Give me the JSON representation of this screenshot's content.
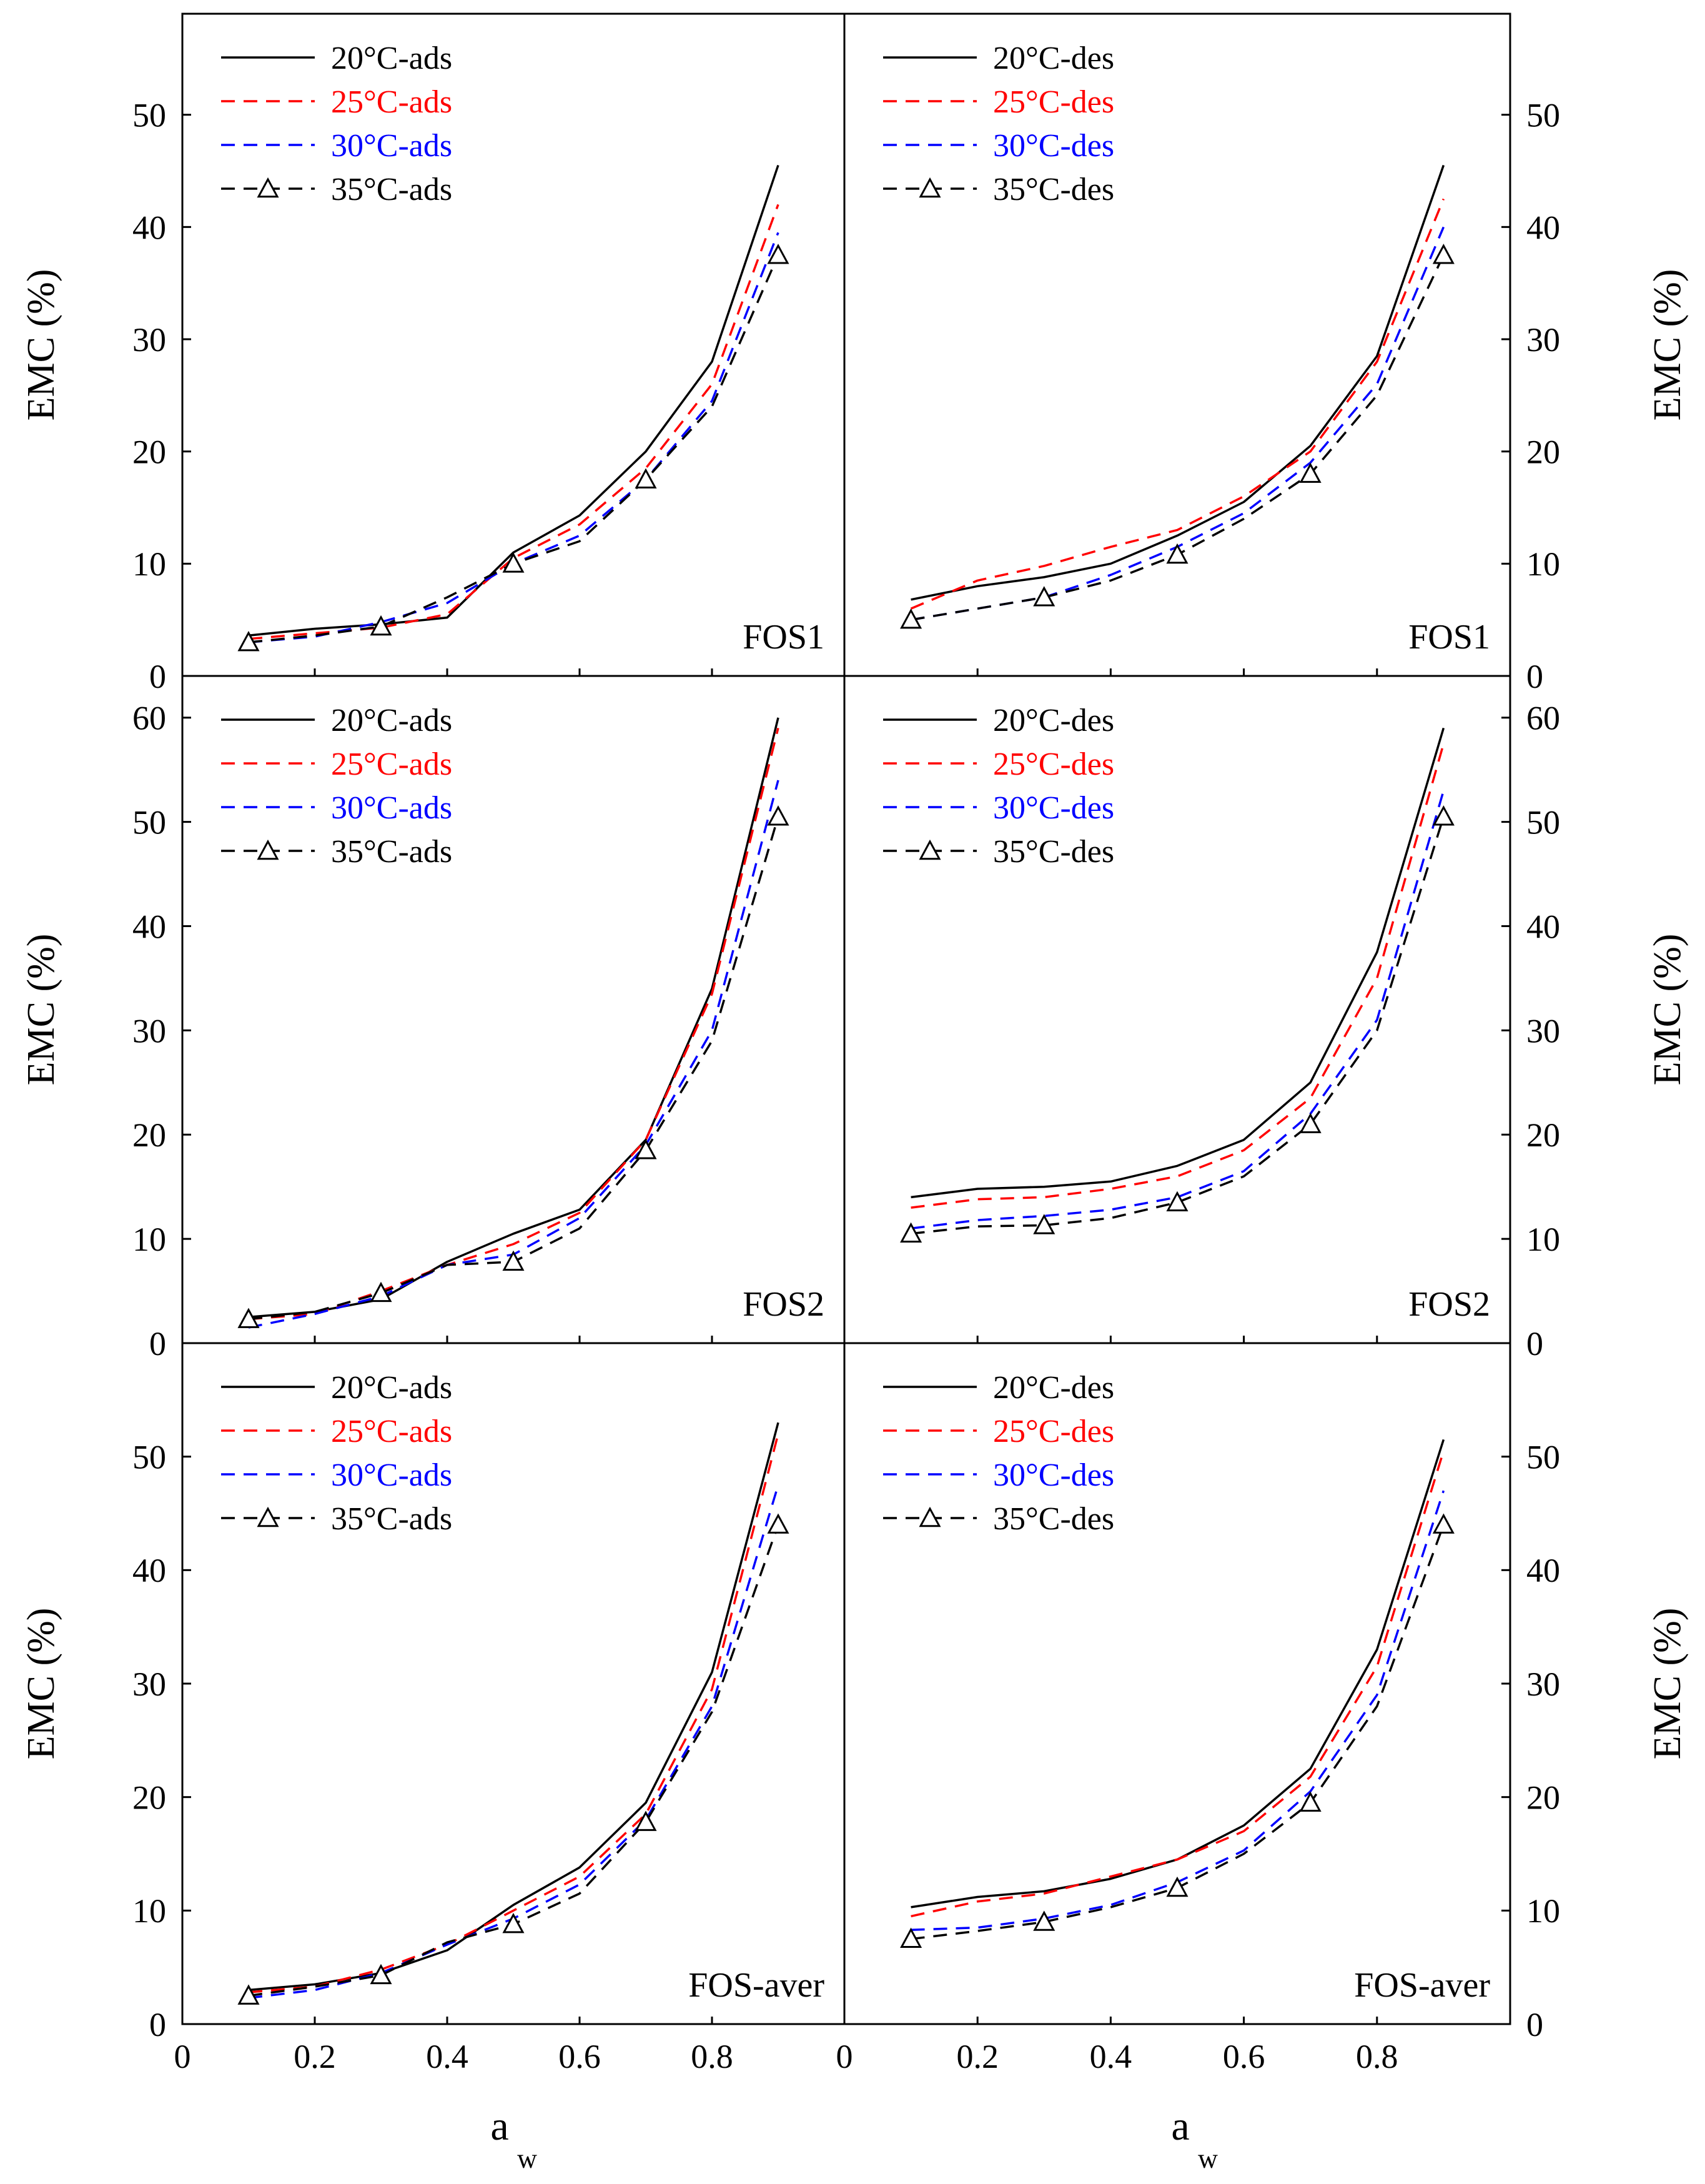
{
  "colors": {
    "t20": "#000000",
    "t25": "#ff0000",
    "t30": "#0000ff",
    "t35": "#000000",
    "axis": "#000000"
  },
  "x_axis": {
    "label_main": "a",
    "label_sub": "w",
    "ticks": [
      "0",
      "0.2",
      "0.4",
      "0.6",
      "0.8"
    ]
  },
  "chart_data": [
    {
      "type": "line",
      "column": "left",
      "row": 0,
      "y_axis_side": "left",
      "panel_label": "FOS1",
      "ylabel": "EMC (%)",
      "xlim": [
        0,
        1
      ],
      "ylim": [
        0,
        59
      ],
      "yticks": [
        "0",
        "10",
        "20",
        "30",
        "40",
        "50"
      ],
      "legend_position": "top-left",
      "series": [
        {
          "name": "20°C-ads",
          "style": "t20",
          "x": [
            0.1,
            0.2,
            0.3,
            0.4,
            0.5,
            0.6,
            0.7,
            0.8,
            0.9
          ],
          "values": [
            3.6,
            4.2,
            4.6,
            5.2,
            11.0,
            14.3,
            20.0,
            28.0,
            45.5
          ]
        },
        {
          "name": "25°C-ads",
          "style": "t25",
          "x": [
            0.1,
            0.2,
            0.3,
            0.4,
            0.5,
            0.6,
            0.7,
            0.8,
            0.9
          ],
          "values": [
            3.3,
            3.8,
            4.3,
            5.5,
            10.5,
            13.5,
            18.5,
            26.0,
            42.0
          ]
        },
        {
          "name": "30°C-ads",
          "style": "t30",
          "x": [
            0.1,
            0.2,
            0.3,
            0.4,
            0.5,
            0.6,
            0.7,
            0.8,
            0.9
          ],
          "values": [
            3.0,
            3.5,
            4.8,
            6.5,
            10.0,
            12.5,
            17.5,
            24.5,
            39.5
          ]
        },
        {
          "name": "35°C-ads",
          "style": "t35",
          "x": [
            0.1,
            0.2,
            0.3,
            0.4,
            0.5,
            0.6,
            0.7,
            0.8,
            0.9
          ],
          "values": [
            3.0,
            3.6,
            4.4,
            7.0,
            10.0,
            12.0,
            17.5,
            24.0,
            37.5
          ]
        }
      ]
    },
    {
      "type": "line",
      "column": "right",
      "row": 0,
      "y_axis_side": "right",
      "panel_label": "FOS1",
      "ylabel": "EMC (%)",
      "xlim": [
        0,
        1
      ],
      "ylim": [
        0,
        59
      ],
      "yticks": [
        "0",
        "10",
        "20",
        "30",
        "40",
        "50"
      ],
      "legend_position": "top-left",
      "series": [
        {
          "name": "20°C-des",
          "style": "t20",
          "x": [
            0.1,
            0.2,
            0.3,
            0.4,
            0.5,
            0.6,
            0.7,
            0.8,
            0.9
          ],
          "values": [
            6.8,
            8.0,
            8.8,
            10.0,
            12.5,
            15.5,
            20.5,
            28.5,
            45.5
          ]
        },
        {
          "name": "25°C-des",
          "style": "t25",
          "x": [
            0.1,
            0.2,
            0.3,
            0.4,
            0.5,
            0.6,
            0.7,
            0.8,
            0.9
          ],
          "values": [
            6.0,
            8.5,
            9.8,
            11.5,
            13.0,
            16.0,
            20.0,
            28.0,
            42.5
          ]
        },
        {
          "name": "30°C-des",
          "style": "t30",
          "x": [
            0.1,
            0.2,
            0.3,
            0.4,
            0.5,
            0.6,
            0.7,
            0.8,
            0.9
          ],
          "values": [
            5.0,
            6.0,
            7.0,
            9.0,
            11.5,
            14.5,
            19.0,
            26.0,
            40.0
          ]
        },
        {
          "name": "35°C-des",
          "style": "t35",
          "x": [
            0.1,
            0.2,
            0.3,
            0.4,
            0.5,
            0.6,
            0.7,
            0.8,
            0.9
          ],
          "values": [
            5.0,
            6.0,
            7.0,
            8.5,
            10.8,
            14.0,
            18.0,
            25.0,
            37.5
          ]
        }
      ]
    },
    {
      "type": "line",
      "column": "left",
      "row": 1,
      "y_axis_side": "left",
      "panel_label": "FOS2",
      "ylabel": "EMC (%)",
      "xlim": [
        0,
        1
      ],
      "ylim": [
        0,
        64
      ],
      "yticks": [
        "0",
        "10",
        "20",
        "30",
        "40",
        "50",
        "60"
      ],
      "legend_position": "top-left",
      "series": [
        {
          "name": "20°C-ads",
          "style": "t20",
          "x": [
            0.1,
            0.2,
            0.3,
            0.4,
            0.5,
            0.6,
            0.7,
            0.8,
            0.9
          ],
          "values": [
            2.5,
            3.0,
            4.2,
            7.8,
            10.5,
            12.8,
            19.5,
            34.0,
            60.0
          ]
        },
        {
          "name": "25°C-ads",
          "style": "t25",
          "x": [
            0.1,
            0.2,
            0.3,
            0.4,
            0.5,
            0.6,
            0.7,
            0.8,
            0.9
          ],
          "values": [
            2.3,
            2.8,
            5.0,
            7.5,
            9.5,
            12.5,
            19.5,
            33.5,
            59.0
          ]
        },
        {
          "name": "30°C-ads",
          "style": "t30",
          "x": [
            0.1,
            0.2,
            0.3,
            0.4,
            0.5,
            0.6,
            0.7,
            0.8,
            0.9
          ],
          "values": [
            1.5,
            2.8,
            4.5,
            7.5,
            8.5,
            12.0,
            19.0,
            30.0,
            54.0
          ]
        },
        {
          "name": "35°C-ads",
          "style": "t35",
          "x": [
            0.1,
            0.2,
            0.3,
            0.4,
            0.5,
            0.6,
            0.7,
            0.8,
            0.9
          ],
          "values": [
            2.3,
            3.0,
            4.8,
            7.5,
            7.8,
            11.0,
            18.5,
            29.0,
            50.5
          ]
        }
      ]
    },
    {
      "type": "line",
      "column": "right",
      "row": 1,
      "y_axis_side": "right",
      "panel_label": "FOS2",
      "ylabel": "EMC (%)",
      "xlim": [
        0,
        1
      ],
      "ylim": [
        0,
        64
      ],
      "yticks": [
        "0",
        "10",
        "20",
        "30",
        "40",
        "50",
        "60"
      ],
      "legend_position": "top-left",
      "series": [
        {
          "name": "20°C-des",
          "style": "t20",
          "x": [
            0.1,
            0.2,
            0.3,
            0.4,
            0.5,
            0.6,
            0.7,
            0.8,
            0.9
          ],
          "values": [
            14.0,
            14.8,
            15.0,
            15.5,
            17.0,
            19.5,
            25.0,
            37.5,
            59.0
          ]
        },
        {
          "name": "25°C-des",
          "style": "t25",
          "x": [
            0.1,
            0.2,
            0.3,
            0.4,
            0.5,
            0.6,
            0.7,
            0.8,
            0.9
          ],
          "values": [
            13.0,
            13.8,
            14.0,
            14.8,
            16.0,
            18.5,
            23.5,
            35.0,
            57.5
          ]
        },
        {
          "name": "30°C-des",
          "style": "t30",
          "x": [
            0.1,
            0.2,
            0.3,
            0.4,
            0.5,
            0.6,
            0.7,
            0.8,
            0.9
          ],
          "values": [
            11.0,
            11.8,
            12.2,
            12.8,
            14.0,
            16.5,
            22.0,
            31.0,
            53.0
          ]
        },
        {
          "name": "35°C-des",
          "style": "t35",
          "x": [
            0.1,
            0.2,
            0.3,
            0.4,
            0.5,
            0.6,
            0.7,
            0.8,
            0.9
          ],
          "values": [
            10.5,
            11.2,
            11.3,
            12.0,
            13.5,
            16.0,
            21.0,
            30.0,
            50.5
          ]
        }
      ]
    },
    {
      "type": "line",
      "column": "left",
      "row": 2,
      "y_axis_side": "left",
      "panel_label": "FOS-aver",
      "ylabel": "EMC (%)",
      "xlim": [
        0,
        1
      ],
      "ylim": [
        0,
        60
      ],
      "yticks": [
        "0",
        "10",
        "20",
        "30",
        "40",
        "50"
      ],
      "legend_position": "top-left",
      "series": [
        {
          "name": "20°C-ads",
          "style": "t20",
          "x": [
            0.1,
            0.2,
            0.3,
            0.4,
            0.5,
            0.6,
            0.7,
            0.8,
            0.9
          ],
          "values": [
            3.0,
            3.5,
            4.5,
            6.5,
            10.5,
            13.8,
            19.5,
            31.0,
            53.0
          ]
        },
        {
          "name": "25°C-ads",
          "style": "t25",
          "x": [
            0.1,
            0.2,
            0.3,
            0.4,
            0.5,
            0.6,
            0.7,
            0.8,
            0.9
          ],
          "values": [
            2.8,
            3.3,
            4.8,
            7.0,
            10.0,
            13.0,
            18.5,
            29.5,
            52.0
          ]
        },
        {
          "name": "30°C-ads",
          "style": "t30",
          "x": [
            0.1,
            0.2,
            0.3,
            0.4,
            0.5,
            0.6,
            0.7,
            0.8,
            0.9
          ],
          "values": [
            2.3,
            3.0,
            4.5,
            7.0,
            9.3,
            12.3,
            18.0,
            28.0,
            47.5
          ]
        },
        {
          "name": "35°C-ads",
          "style": "t35",
          "x": [
            0.1,
            0.2,
            0.3,
            0.4,
            0.5,
            0.6,
            0.7,
            0.8,
            0.9
          ],
          "values": [
            2.5,
            3.3,
            4.3,
            7.2,
            8.8,
            11.5,
            17.8,
            27.5,
            44.0
          ]
        }
      ]
    },
    {
      "type": "line",
      "column": "right",
      "row": 2,
      "y_axis_side": "right",
      "panel_label": "FOS-aver",
      "ylabel": "EMC (%)",
      "xlim": [
        0,
        1
      ],
      "ylim": [
        0,
        60
      ],
      "yticks": [
        "0",
        "10",
        "20",
        "30",
        "40",
        "50"
      ],
      "legend_position": "top-left",
      "series": [
        {
          "name": "20°C-des",
          "style": "t20",
          "x": [
            0.1,
            0.2,
            0.3,
            0.4,
            0.5,
            0.6,
            0.7,
            0.8,
            0.9
          ],
          "values": [
            10.3,
            11.2,
            11.7,
            12.8,
            14.5,
            17.5,
            22.5,
            33.0,
            51.5
          ]
        },
        {
          "name": "25°C-des",
          "style": "t25",
          "x": [
            0.1,
            0.2,
            0.3,
            0.4,
            0.5,
            0.6,
            0.7,
            0.8,
            0.9
          ],
          "values": [
            9.5,
            10.8,
            11.5,
            13.0,
            14.5,
            17.0,
            21.8,
            31.5,
            50.5
          ]
        },
        {
          "name": "30°C-des",
          "style": "t30",
          "x": [
            0.1,
            0.2,
            0.3,
            0.4,
            0.5,
            0.6,
            0.7,
            0.8,
            0.9
          ],
          "values": [
            8.3,
            8.5,
            9.3,
            10.5,
            12.5,
            15.3,
            20.5,
            29.0,
            47.0
          ]
        },
        {
          "name": "35°C-des",
          "style": "t35",
          "x": [
            0.1,
            0.2,
            0.3,
            0.4,
            0.5,
            0.6,
            0.7,
            0.8,
            0.9
          ],
          "values": [
            7.5,
            8.2,
            9.0,
            10.3,
            12.0,
            15.0,
            19.5,
            28.0,
            44.0
          ]
        }
      ]
    }
  ]
}
